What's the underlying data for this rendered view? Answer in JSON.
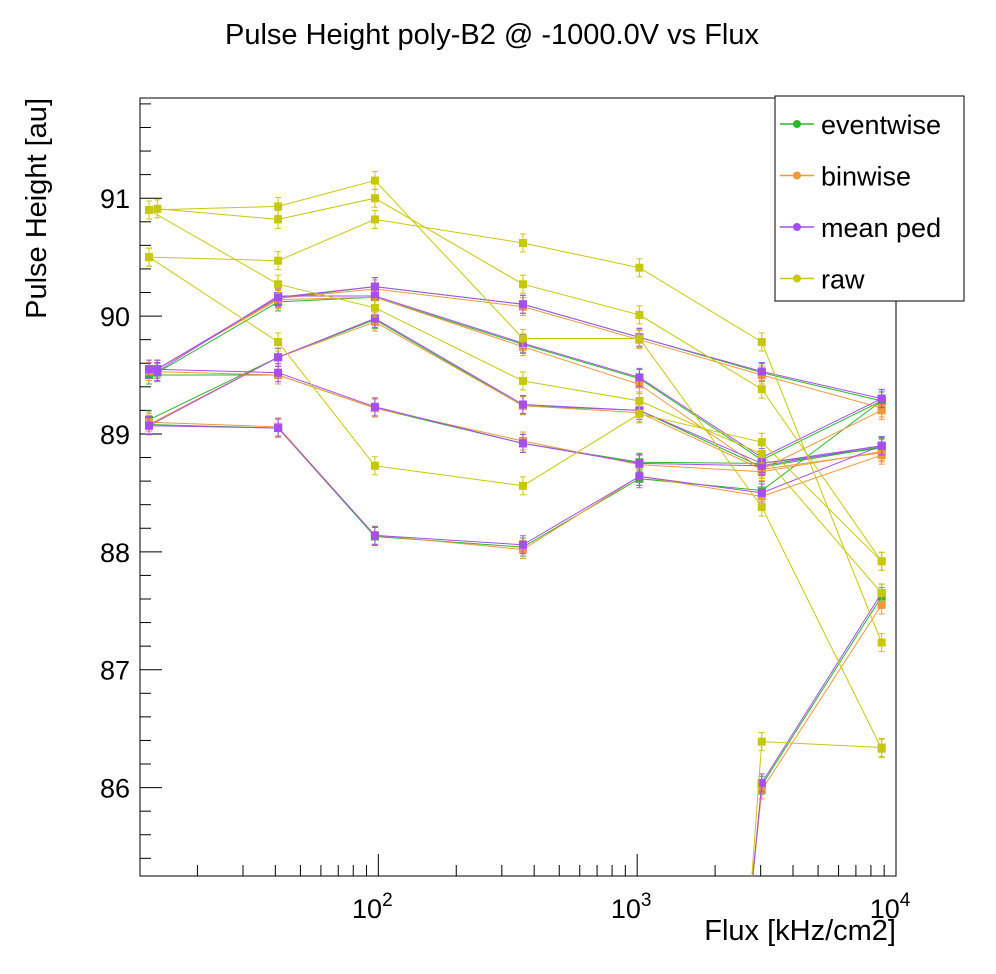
{
  "colors": {
    "eventwise": "#2ab82a",
    "binwise": "#f0983a",
    "mean_ped": "#a64ef0",
    "raw": "#c8c80a"
  },
  "chart_data": {
    "type": "line",
    "title": "Pulse Height poly-B2 @ -1000.0V vs Flux",
    "xlabel": "Flux [kHz/cm2]",
    "ylabel": "Pulse Height [au]",
    "xscale": "log",
    "xlim": [
      12,
      10000
    ],
    "ylim": [
      85.25,
      91.85
    ],
    "x_ticks": [
      {
        "value": 100,
        "base": "10",
        "exp": "2"
      },
      {
        "value": 1000,
        "base": "10",
        "exp": "3"
      },
      {
        "value": 10000,
        "base": "10",
        "exp": "4"
      }
    ],
    "y_ticks": [
      86,
      87,
      88,
      89,
      90,
      91
    ],
    "legend_position": "top-right",
    "x": [
      13,
      14,
      41,
      97,
      362,
      1020,
      3030,
      8800
    ],
    "series": [
      {
        "name": "eventwise",
        "color_key": "eventwise",
        "in_legend": true,
        "runs": [
          {
            "x": [
              14,
              41,
              97,
              362,
              1020,
              3030,
              8800
            ],
            "y": [
              89.52,
              90.12,
              90.16,
              89.76,
              89.47,
              88.78,
              89.28
            ]
          },
          {
            "x": [
              13,
              41,
              97,
              362,
              1020,
              3030,
              8800
            ],
            "y": [
              89.08,
              89.05,
              88.13,
              88.04,
              88.62,
              88.52,
              89.28
            ]
          },
          {
            "x": [
              13,
              41,
              97,
              362,
              1020,
              3030,
              8800
            ],
            "y": [
              89.5,
              89.5,
              89.22,
              88.92,
              88.76,
              88.75,
              88.88
            ]
          },
          {
            "x": [
              14,
              41,
              97,
              362,
              1020,
              3030,
              8800
            ],
            "y": [
              89.55,
              90.15,
              90.25,
              90.1,
              89.82,
              89.52,
              89.28
            ]
          },
          {
            "x": [
              13,
              41,
              97,
              362,
              1020,
              3030,
              8800
            ],
            "y": [
              89.12,
              89.65,
              89.97,
              89.24,
              89.2,
              88.72,
              88.89
            ]
          },
          {
            "x": [
              2700,
              3030,
              8800
            ],
            "y": [
              84.9,
              86.02,
              87.62
            ]
          }
        ]
      },
      {
        "name": "binwise",
        "color_key": "binwise",
        "in_legend": true,
        "runs": [
          {
            "x": [
              14,
              41,
              97,
              362,
              1020,
              3030,
              8800
            ],
            "y": [
              89.55,
              90.14,
              90.16,
              89.74,
              89.42,
              88.7,
              89.2
            ]
          },
          {
            "x": [
              13,
              41,
              97,
              362,
              1020,
              3030,
              8800
            ],
            "y": [
              89.1,
              89.06,
              88.14,
              88.02,
              88.64,
              88.47,
              88.82
            ]
          },
          {
            "x": [
              13,
              41,
              97,
              362,
              1020,
              3030,
              8800
            ],
            "y": [
              89.53,
              89.5,
              89.22,
              88.94,
              88.74,
              88.68,
              88.85
            ]
          },
          {
            "x": [
              14,
              41,
              97,
              362,
              1020,
              3030,
              8800
            ],
            "y": [
              89.55,
              90.15,
              90.23,
              90.08,
              89.8,
              89.5,
              89.22
            ]
          },
          {
            "x": [
              13,
              41,
              97,
              362,
              1020,
              3030,
              8800
            ],
            "y": [
              89.08,
              89.65,
              89.95,
              89.24,
              89.18,
              88.7,
              88.84
            ]
          },
          {
            "x": [
              2700,
              3030,
              8800
            ],
            "y": [
              84.9,
              85.98,
              87.55
            ]
          }
        ]
      },
      {
        "name": "mean ped",
        "color_key": "mean_ped",
        "in_legend": true,
        "runs": [
          {
            "x": [
              14,
              41,
              97,
              362,
              1020,
              3030,
              8800
            ],
            "y": [
              89.53,
              90.17,
              90.17,
              89.77,
              89.48,
              88.8,
              89.3
            ]
          },
          {
            "x": [
              13,
              41,
              97,
              362,
              1020,
              3030,
              8800
            ],
            "y": [
              89.07,
              89.05,
              88.14,
              88.06,
              88.64,
              88.5,
              88.9
            ]
          },
          {
            "x": [
              13,
              41,
              97,
              362,
              1020,
              3030,
              8800
            ],
            "y": [
              89.55,
              89.52,
              89.23,
              88.92,
              88.75,
              88.73,
              88.9
            ]
          },
          {
            "x": [
              14,
              41,
              97,
              362,
              1020,
              3030,
              8800
            ],
            "y": [
              89.55,
              90.16,
              90.25,
              90.1,
              89.82,
              89.53,
              89.3
            ]
          },
          {
            "x": [
              13,
              41,
              97,
              362,
              1020,
              3030,
              8800
            ],
            "y": [
              89.07,
              89.65,
              89.98,
              89.25,
              89.2,
              88.75,
              88.9
            ]
          },
          {
            "x": [
              2700,
              3030,
              8800
            ],
            "y": [
              84.9,
              86.04,
              87.65
            ]
          }
        ]
      },
      {
        "name": "raw",
        "color_key": "raw",
        "in_legend": true,
        "runs": [
          {
            "x": [
              14,
              41,
              97,
              362,
              1020,
              3030,
              8800
            ],
            "y": [
              90.91,
              90.82,
              91.0,
              90.27,
              90.01,
              89.38,
              87.92
            ]
          },
          {
            "x": [
              13,
              41,
              97,
              362,
              1020,
              3030,
              8800
            ],
            "y": [
              90.5,
              90.47,
              90.82,
              90.62,
              90.41,
              89.78,
              87.23
            ]
          },
          {
            "x": [
              13,
              41,
              97,
              362,
              1020,
              3030,
              8800
            ],
            "y": [
              90.9,
              90.93,
              91.15,
              89.81,
              89.81,
              88.38,
              86.33
            ]
          },
          {
            "x": [
              13,
              41,
              97,
              362,
              1020,
              3030,
              8800
            ],
            "y": [
              90.5,
              89.78,
              88.73,
              88.56,
              89.17,
              88.93,
              87.92
            ]
          },
          {
            "x": [
              13,
              41,
              97,
              362,
              1020,
              3030,
              8800
            ],
            "y": [
              90.9,
              90.27,
              90.07,
              89.45,
              89.28,
              88.83,
              87.65
            ]
          },
          {
            "x": [
              2700,
              3030,
              8800
            ],
            "y": [
              84.9,
              86.39,
              86.34
            ]
          }
        ]
      }
    ]
  }
}
